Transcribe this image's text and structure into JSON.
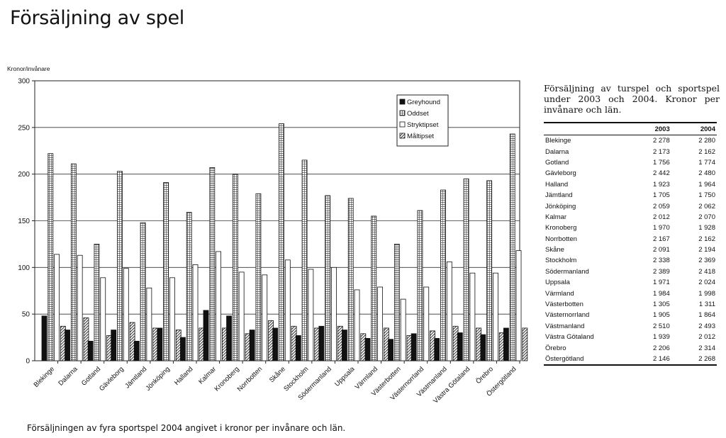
{
  "page": {
    "title": "Försäljning av spel",
    "caption": "Försäljningen av fyra sportspel 2004 angivet i kronor per invånare och län."
  },
  "chart_data": {
    "type": "bar",
    "ylabel": "Kronor/invånare",
    "xlabel": "",
    "ylim": [
      0,
      300
    ],
    "yticks": [
      0,
      50,
      100,
      150,
      200,
      250,
      300
    ],
    "grid": true,
    "legend_position": "top-right",
    "categories": [
      "Blekinge",
      "Dalarna",
      "Gotland",
      "Gävleborg",
      "Jämtland",
      "Jönköping",
      "Halland",
      "Kalmar",
      "Kronoberg",
      "Norrbotten",
      "Skåne",
      "Stockholm",
      "Södermanland",
      "Uppsala",
      "Värmland",
      "Västerbotten",
      "Västernorrland",
      "Västmanland",
      "Västra Götaland",
      "Örebro",
      "Östergötland"
    ],
    "series": [
      {
        "name": "Greyhound",
        "values": [
          48,
          33,
          21,
          33,
          21,
          35,
          25,
          54,
          48,
          33,
          35,
          27,
          37,
          33,
          24,
          23,
          29,
          24,
          30,
          28,
          35
        ]
      },
      {
        "name": "Oddset",
        "values": [
          222,
          211,
          125,
          203,
          148,
          191,
          159,
          207,
          200,
          179,
          254,
          215,
          177,
          174,
          155,
          125,
          161,
          183,
          195,
          193,
          243
        ]
      },
      {
        "name": "Stryktipset",
        "values": [
          114,
          113,
          89,
          99,
          78,
          89,
          103,
          117,
          95,
          92,
          108,
          98,
          100,
          76,
          79,
          66,
          79,
          106,
          94,
          94,
          118
        ]
      },
      {
        "name": "Måltipset",
        "values": [
          37,
          46,
          27,
          41,
          35,
          33,
          35,
          35,
          29,
          43,
          37,
          35,
          37,
          29,
          35,
          27,
          32,
          37,
          35,
          30,
          35
        ]
      }
    ],
    "colors": {
      "Greyhound": "#1a1a1a",
      "Oddset": "#6e6e6e",
      "Stryktipset": "#ffffff",
      "Måltipset": "#9a9a9a"
    }
  },
  "table": {
    "caption": "Försäljning av turspel och sportspel under 2003 och 2004. Kronor per invånare och län.",
    "headers": [
      "",
      "2003",
      "2004"
    ],
    "rows": [
      [
        "Blekinge",
        "2 278",
        "2 280"
      ],
      [
        "Dalarna",
        "2 173",
        "2 162"
      ],
      [
        "Gotland",
        "1 756",
        "1 774"
      ],
      [
        "Gävleborg",
        "2 442",
        "2 480"
      ],
      [
        "Halland",
        "1 923",
        "1 964"
      ],
      [
        "Jämtland",
        "1 705",
        "1 750"
      ],
      [
        "Jönköping",
        "2 059",
        "2 062"
      ],
      [
        "Kalmar",
        "2 012",
        "2 070"
      ],
      [
        "Kronoberg",
        "1 970",
        "1 928"
      ],
      [
        "Norrbotten",
        "2 167",
        "2 162"
      ],
      [
        "Skåne",
        "2 091",
        "2 194"
      ],
      [
        "Stockholm",
        "2 338",
        "2 369"
      ],
      [
        "Södermanland",
        "2 389",
        "2 418"
      ],
      [
        "Uppsala",
        "1 971",
        "2 024"
      ],
      [
        "Värmland",
        "1 984",
        "1 998"
      ],
      [
        "Västerbotten",
        "1 305",
        "1 311"
      ],
      [
        "Västernorrland",
        "1 905",
        "1 864"
      ],
      [
        "Västmanland",
        "2 510",
        "2 493"
      ],
      [
        "Västra Götaland",
        "1 939",
        "2 012"
      ],
      [
        "Örebro",
        "2 206",
        "2 314"
      ],
      [
        "Östergötland",
        "2 146",
        "2 268"
      ]
    ]
  }
}
